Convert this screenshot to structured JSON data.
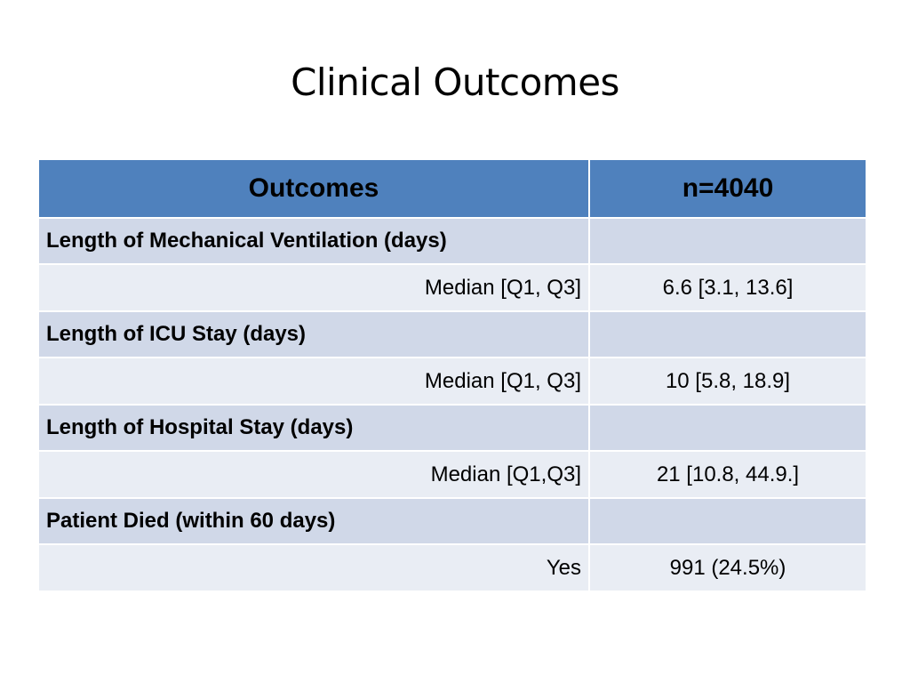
{
  "slide": {
    "title": "Clinical Outcomes"
  },
  "table": {
    "headers": [
      "Outcomes",
      "n=4040"
    ],
    "header_color": "#4f81bd",
    "band_color_dark": "#d0d8e8",
    "band_color_light": "#e9edf4",
    "sections": [
      {
        "label": "Length of Mechanical Ventilation (days)",
        "stat_label": "Median [Q1, Q3]",
        "stat_value": "6.6 [3.1, 13.6]"
      },
      {
        "label": "Length of ICU Stay (days)",
        "stat_label": "Median [Q1, Q3]",
        "stat_value": "10 [5.8, 18.9]"
      },
      {
        "label": "Length of Hospital Stay (days)",
        "stat_label": "Median [Q1,Q3]",
        "stat_value": "21 [10.8, 44.9.]"
      },
      {
        "label": "Patient Died (within 60 days)",
        "stat_label": "Yes",
        "stat_value": "991 (24.5%)"
      }
    ]
  }
}
